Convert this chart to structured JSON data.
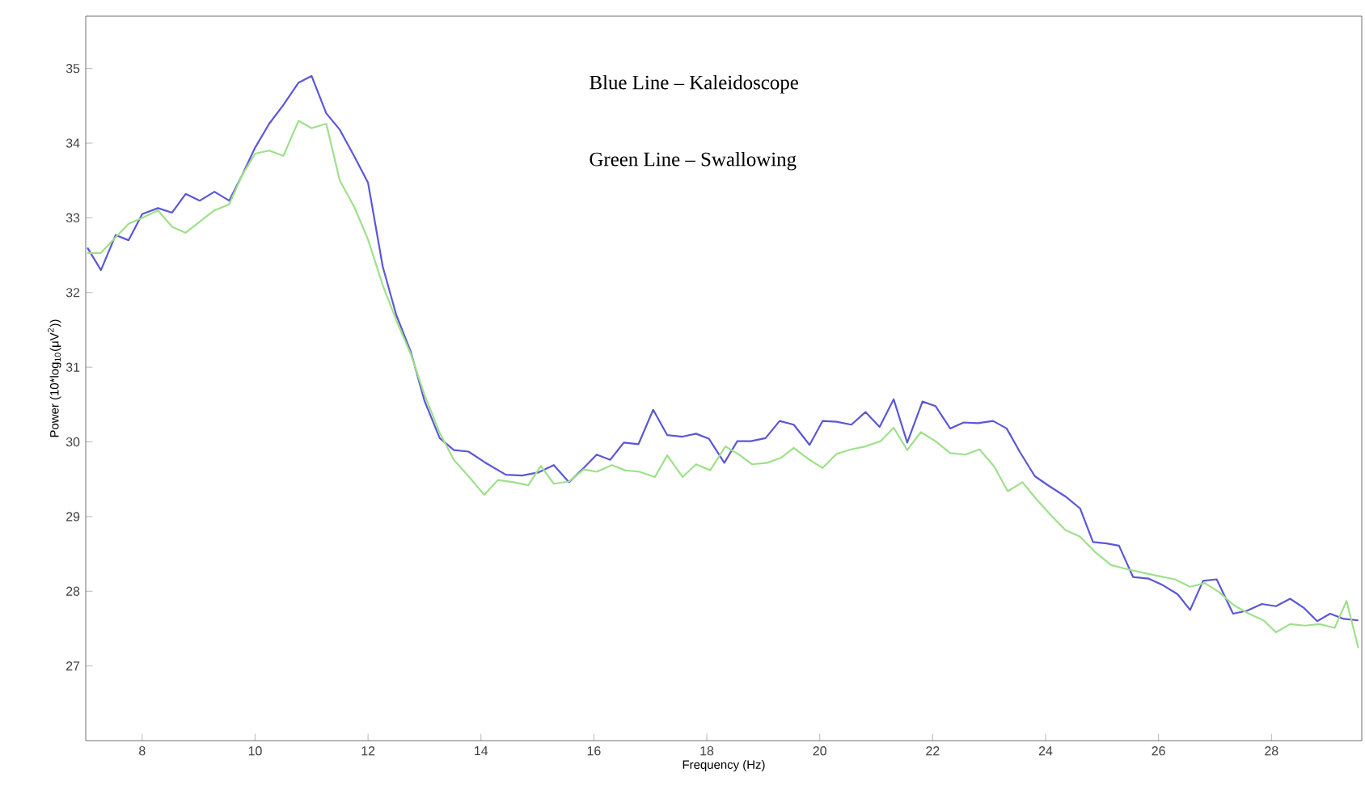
{
  "chart_data": {
    "type": "line",
    "xlabel": "Frequency (Hz)",
    "ylabel": "Power (10*log$_{10}$(μV$^{2}$))",
    "annotations": [
      "Blue Line – Kaleidoscope",
      "Green Line – Swallowing"
    ],
    "xlim": [
      7,
      29.6
    ],
    "ylim": [
      26,
      35.7
    ],
    "xticks": [
      8,
      10,
      12,
      14,
      16,
      18,
      20,
      22,
      24,
      26,
      28
    ],
    "yticks": [
      27,
      28,
      29,
      30,
      31,
      32,
      33,
      34,
      35
    ],
    "grid": false,
    "marker": "none",
    "line_style": "solid",
    "series": [
      {
        "color": "#5b57d6",
        "x": [
          7.03,
          7.27,
          7.53,
          7.76,
          8.0,
          8.28,
          8.53,
          8.77,
          9.02,
          9.28,
          9.54,
          9.77,
          10.0,
          10.25,
          10.5,
          10.77,
          11.0,
          11.26,
          11.5,
          11.76,
          12.0,
          12.26,
          12.5,
          12.76,
          13.0,
          13.27,
          13.52,
          13.78,
          14.06,
          14.44,
          14.73,
          15.01,
          15.29,
          15.56,
          15.82,
          16.05,
          16.29,
          16.53,
          16.79,
          17.05,
          17.3,
          17.57,
          17.81,
          18.04,
          18.31,
          18.54,
          18.78,
          19.04,
          19.29,
          19.54,
          19.82,
          20.05,
          20.3,
          20.56,
          20.81,
          21.06,
          21.31,
          21.55,
          21.82,
          22.05,
          22.31,
          22.55,
          22.8,
          23.07,
          23.31,
          23.54,
          23.81,
          24.06,
          24.35,
          24.61,
          24.84,
          25.08,
          25.3,
          25.55,
          25.82,
          26.08,
          26.34,
          26.56,
          26.79,
          27.03,
          27.32,
          27.57,
          27.83,
          28.08,
          28.33,
          28.57,
          28.81,
          29.04,
          29.28,
          29.54
        ],
        "values": [
          32.6,
          32.3,
          32.77,
          32.7,
          33.05,
          33.13,
          33.07,
          33.32,
          33.23,
          33.35,
          33.23,
          33.57,
          33.94,
          34.26,
          34.51,
          34.81,
          34.9,
          34.4,
          34.18,
          33.82,
          33.47,
          32.35,
          31.7,
          31.2,
          30.55,
          30.05,
          29.89,
          29.87,
          29.73,
          29.56,
          29.55,
          29.59,
          29.69,
          29.46,
          29.65,
          29.83,
          29.76,
          29.99,
          29.97,
          30.43,
          30.09,
          30.07,
          30.11,
          30.04,
          29.72,
          30.01,
          30.01,
          30.05,
          30.28,
          30.23,
          29.96,
          30.28,
          30.27,
          30.23,
          30.4,
          30.2,
          30.57,
          29.99,
          30.54,
          30.48,
          30.18,
          30.26,
          30.25,
          30.28,
          30.18,
          29.87,
          29.54,
          29.41,
          29.27,
          29.11,
          28.66,
          28.64,
          28.61,
          28.19,
          28.17,
          28.08,
          27.96,
          27.75,
          28.14,
          28.16,
          27.7,
          27.74,
          27.83,
          27.8,
          27.9,
          27.78,
          27.6,
          27.7,
          27.63,
          27.61
        ]
      },
      {
        "color": "#9fe08a",
        "x": [
          7.03,
          7.27,
          7.53,
          7.76,
          8.0,
          8.28,
          8.53,
          8.77,
          9.02,
          9.28,
          9.54,
          9.77,
          10.0,
          10.25,
          10.5,
          10.77,
          11.0,
          11.26,
          11.5,
          11.76,
          12.0,
          12.26,
          12.5,
          12.76,
          13.0,
          13.27,
          13.52,
          13.78,
          14.06,
          14.3,
          14.58,
          14.84,
          15.06,
          15.29,
          15.56,
          15.82,
          16.05,
          16.32,
          16.55,
          16.81,
          17.08,
          17.3,
          17.57,
          17.81,
          18.06,
          18.33,
          18.57,
          18.8,
          19.07,
          19.32,
          19.54,
          19.8,
          20.05,
          20.3,
          20.56,
          20.81,
          21.08,
          21.31,
          21.55,
          21.79,
          22.05,
          22.31,
          22.58,
          22.83,
          23.09,
          23.33,
          23.59,
          23.83,
          24.09,
          24.35,
          24.61,
          24.87,
          25.16,
          25.42,
          25.71,
          25.96,
          26.29,
          26.56,
          26.82,
          27.07,
          27.34,
          27.6,
          27.86,
          28.08,
          28.33,
          28.59,
          28.85,
          29.12,
          29.33,
          29.54
        ],
        "values": [
          32.53,
          32.53,
          32.74,
          32.92,
          33.0,
          33.1,
          32.88,
          32.8,
          32.95,
          33.1,
          33.18,
          33.57,
          33.86,
          33.9,
          33.83,
          34.3,
          34.2,
          34.26,
          33.5,
          33.14,
          32.71,
          32.1,
          31.63,
          31.17,
          30.63,
          30.12,
          29.76,
          29.54,
          29.29,
          29.49,
          29.46,
          29.42,
          29.68,
          29.44,
          29.47,
          29.63,
          29.6,
          29.69,
          29.62,
          29.6,
          29.53,
          29.82,
          29.53,
          29.7,
          29.62,
          29.94,
          29.83,
          29.7,
          29.72,
          29.79,
          29.92,
          29.77,
          29.65,
          29.84,
          29.9,
          29.94,
          30.01,
          30.19,
          29.89,
          30.13,
          30.01,
          29.85,
          29.83,
          29.9,
          29.67,
          29.34,
          29.46,
          29.24,
          29.02,
          28.82,
          28.73,
          28.53,
          28.35,
          28.3,
          28.25,
          28.21,
          28.16,
          28.06,
          28.11,
          27.99,
          27.81,
          27.7,
          27.61,
          27.45,
          27.56,
          27.54,
          27.56,
          27.51,
          27.87,
          27.24
        ]
      }
    ]
  }
}
